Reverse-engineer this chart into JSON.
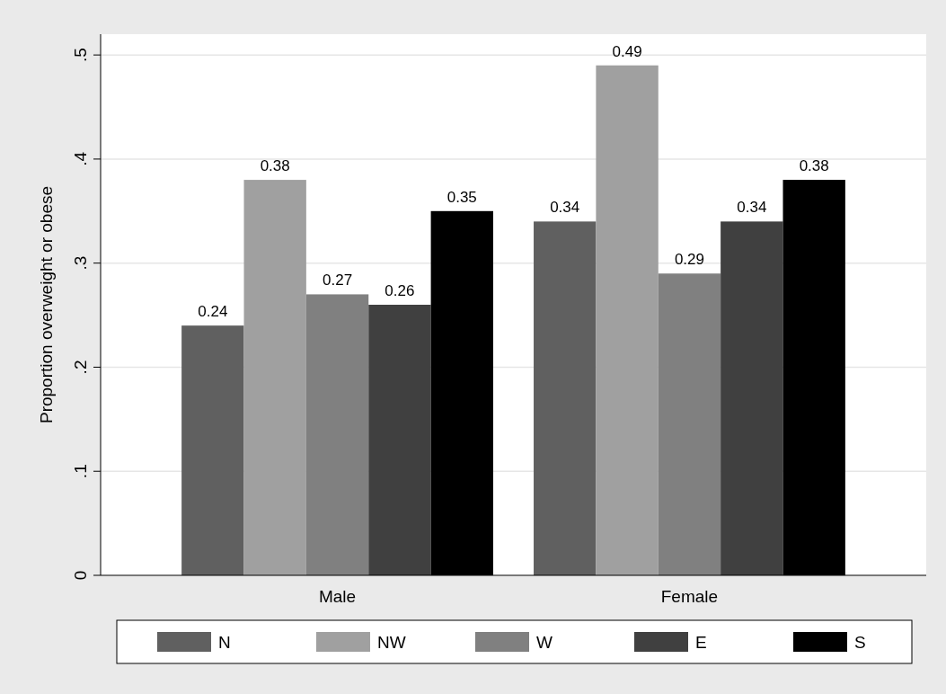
{
  "chart_data": {
    "type": "bar",
    "ylabel": "Proportion overweight or obese",
    "categories": [
      "Male",
      "Female"
    ],
    "series": [
      {
        "name": "N",
        "color": "#606060",
        "values": [
          0.24,
          0.34
        ]
      },
      {
        "name": "NW",
        "color": "#a0a0a0",
        "values": [
          0.38,
          0.49
        ]
      },
      {
        "name": "W",
        "color": "#808080",
        "values": [
          0.27,
          0.29
        ]
      },
      {
        "name": "E",
        "color": "#404040",
        "values": [
          0.26,
          0.34
        ]
      },
      {
        "name": "S",
        "color": "#000000",
        "values": [
          0.35,
          0.38
        ]
      }
    ],
    "ylim": [
      0,
      0.52
    ],
    "yticks": [
      0,
      {
        "value": 0.1,
        "label": ".1"
      },
      {
        "value": 0.2,
        "label": ".2"
      },
      {
        "value": 0.3,
        "label": ".3"
      },
      {
        "value": 0.4,
        "label": ".4"
      },
      {
        "value": 0.5,
        "label": ".5"
      }
    ],
    "grid": "y",
    "data_labels": true,
    "legend": "bottom"
  }
}
